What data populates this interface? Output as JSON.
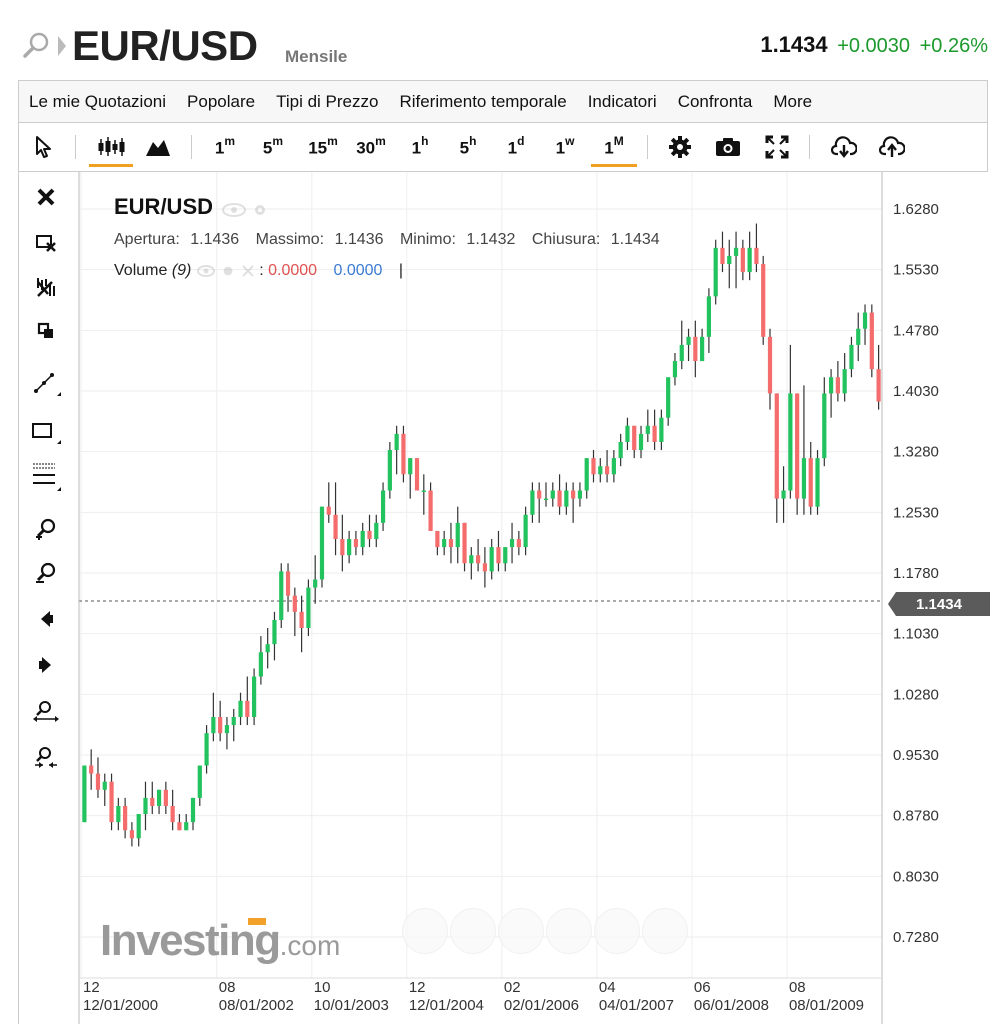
{
  "header": {
    "symbol": "EUR/USD",
    "period": "Mensile",
    "last": "1.1434",
    "change": "+0.0030",
    "change_pct": "+0.26%"
  },
  "menu": [
    "Le mie Quotazioni",
    "Popolare",
    "Tipi di Prezzo",
    "Riferimento temporale",
    "Indicatori",
    "Confronta",
    "More"
  ],
  "toolbar": {
    "intervals": [
      {
        "base": "1",
        "sup": "m"
      },
      {
        "base": "5",
        "sup": "m"
      },
      {
        "base": "15",
        "sup": "m"
      },
      {
        "base": "30",
        "sup": "m"
      },
      {
        "base": "1",
        "sup": "h"
      },
      {
        "base": "5",
        "sup": "h"
      },
      {
        "base": "1",
        "sup": "d"
      },
      {
        "base": "1",
        "sup": "w"
      },
      {
        "base": "1",
        "sup": "M"
      }
    ],
    "active_interval": "1M",
    "icons": [
      "cursor-icon",
      "candlestick-icon",
      "area-chart-icon",
      "settings-gear-icon",
      "camera-icon",
      "fullscreen-icon",
      "download-icon",
      "upload-icon"
    ]
  },
  "left_tools": [
    "close-icon",
    "delete-drawing-icon",
    "indicators-icon",
    "copy-icon",
    "trend-line-icon",
    "rectangle-icon",
    "fibonacci-icon",
    "zoom-in-icon",
    "zoom-out-icon",
    "scroll-left-icon",
    "scroll-right-icon",
    "zoom-in-extent-icon",
    "zoom-out-extent-icon"
  ],
  "legend": {
    "symbol": "EUR/USD",
    "open_label": "Apertura:",
    "open": "1.1436",
    "high_label": "Massimo:",
    "high": "1.1436",
    "low_label": "Minimo:",
    "low": "1.1432",
    "close_label": "Chiusura:",
    "close": "1.1434",
    "volume_label": "Volume",
    "volume_param": "(9)",
    "volume_sep": ":",
    "volume_value1": "0.0000",
    "volume_value2": "0.0000",
    "cursor": "|"
  },
  "watermark": {
    "brand": "Investing",
    "suffix": ".com"
  },
  "colors": {
    "up": "#22c35e",
    "down": "#f56c6c",
    "accent": "#f0a020",
    "badge": "#5b5b5b"
  },
  "chart_data": {
    "type": "candlestick",
    "current_price": 1.1434,
    "current_price_label": "1.1434",
    "ylim": [
      0.69,
      1.655
    ],
    "y_ticks": [
      "1.6280",
      "1.5530",
      "1.4780",
      "1.4030",
      "1.3280",
      "1.2530",
      "1.1780",
      "1.1030",
      "1.0280",
      "0.9530",
      "0.8780",
      "0.8030",
      "0.7280"
    ],
    "x_ticks": [
      {
        "month": "12",
        "date": "12/01/2000",
        "i": 0
      },
      {
        "month": "08",
        "date": "08/01/2002",
        "i": 20
      },
      {
        "month": "10",
        "date": "10/01/2003",
        "i": 34
      },
      {
        "month": "12",
        "date": "12/01/2004",
        "i": 48
      },
      {
        "month": "02",
        "date": "02/01/2006",
        "i": 62
      },
      {
        "month": "04",
        "date": "04/01/2007",
        "i": 76
      },
      {
        "month": "06",
        "date": "06/01/2008",
        "i": 90
      },
      {
        "month": "08",
        "date": "08/01/2009",
        "i": 104
      }
    ],
    "candles": [
      [
        0.87,
        0.94,
        0.87,
        0.94
      ],
      [
        0.94,
        0.96,
        0.91,
        0.93
      ],
      [
        0.93,
        0.95,
        0.9,
        0.91
      ],
      [
        0.91,
        0.93,
        0.89,
        0.92
      ],
      [
        0.92,
        0.93,
        0.86,
        0.87
      ],
      [
        0.87,
        0.9,
        0.86,
        0.89
      ],
      [
        0.89,
        0.9,
        0.85,
        0.86
      ],
      [
        0.86,
        0.87,
        0.84,
        0.85
      ],
      [
        0.85,
        0.88,
        0.84,
        0.88
      ],
      [
        0.88,
        0.92,
        0.86,
        0.9
      ],
      [
        0.9,
        0.92,
        0.88,
        0.89
      ],
      [
        0.89,
        0.91,
        0.88,
        0.91
      ],
      [
        0.91,
        0.92,
        0.88,
        0.89
      ],
      [
        0.89,
        0.91,
        0.86,
        0.87
      ],
      [
        0.87,
        0.88,
        0.86,
        0.86
      ],
      [
        0.86,
        0.88,
        0.86,
        0.87
      ],
      [
        0.87,
        0.9,
        0.86,
        0.9
      ],
      [
        0.9,
        0.94,
        0.89,
        0.94
      ],
      [
        0.94,
        0.99,
        0.93,
        0.98
      ],
      [
        0.98,
        1.03,
        0.97,
        1.0
      ],
      [
        1.0,
        1.02,
        0.97,
        0.98
      ],
      [
        0.98,
        1.0,
        0.96,
        0.99
      ],
      [
        0.99,
        1.01,
        0.97,
        1.0
      ],
      [
        1.0,
        1.03,
        0.99,
        1.02
      ],
      [
        1.02,
        1.05,
        0.99,
        1.0
      ],
      [
        1.0,
        1.06,
        0.99,
        1.05
      ],
      [
        1.05,
        1.1,
        1.04,
        1.08
      ],
      [
        1.08,
        1.11,
        1.06,
        1.09
      ],
      [
        1.09,
        1.13,
        1.07,
        1.12
      ],
      [
        1.12,
        1.19,
        1.11,
        1.18
      ],
      [
        1.18,
        1.19,
        1.13,
        1.15
      ],
      [
        1.15,
        1.16,
        1.1,
        1.13
      ],
      [
        1.13,
        1.15,
        1.08,
        1.11
      ],
      [
        1.11,
        1.17,
        1.1,
        1.16
      ],
      [
        1.16,
        1.2,
        1.14,
        1.17
      ],
      [
        1.17,
        1.26,
        1.16,
        1.26
      ],
      [
        1.26,
        1.29,
        1.24,
        1.25
      ],
      [
        1.25,
        1.29,
        1.2,
        1.22
      ],
      [
        1.22,
        1.25,
        1.18,
        1.2
      ],
      [
        1.2,
        1.23,
        1.19,
        1.22
      ],
      [
        1.22,
        1.23,
        1.2,
        1.21
      ],
      [
        1.21,
        1.24,
        1.2,
        1.23
      ],
      [
        1.23,
        1.25,
        1.21,
        1.22
      ],
      [
        1.22,
        1.25,
        1.21,
        1.24
      ],
      [
        1.24,
        1.29,
        1.23,
        1.28
      ],
      [
        1.28,
        1.34,
        1.27,
        1.33
      ],
      [
        1.33,
        1.36,
        1.3,
        1.35
      ],
      [
        1.35,
        1.36,
        1.29,
        1.3
      ],
      [
        1.3,
        1.32,
        1.27,
        1.32
      ],
      [
        1.32,
        1.32,
        1.28,
        1.28
      ],
      [
        1.28,
        1.3,
        1.25,
        1.28
      ],
      [
        1.28,
        1.29,
        1.23,
        1.23
      ],
      [
        1.23,
        1.23,
        1.2,
        1.21
      ],
      [
        1.21,
        1.23,
        1.2,
        1.22
      ],
      [
        1.22,
        1.24,
        1.19,
        1.21
      ],
      [
        1.21,
        1.26,
        1.19,
        1.24
      ],
      [
        1.24,
        1.24,
        1.18,
        1.19
      ],
      [
        1.19,
        1.21,
        1.17,
        1.2
      ],
      [
        1.2,
        1.22,
        1.18,
        1.19
      ],
      [
        1.19,
        1.21,
        1.16,
        1.18
      ],
      [
        1.18,
        1.22,
        1.17,
        1.21
      ],
      [
        1.21,
        1.23,
        1.18,
        1.19
      ],
      [
        1.19,
        1.21,
        1.18,
        1.21
      ],
      [
        1.21,
        1.24,
        1.19,
        1.22
      ],
      [
        1.22,
        1.23,
        1.2,
        1.21
      ],
      [
        1.21,
        1.26,
        1.2,
        1.25
      ],
      [
        1.25,
        1.29,
        1.24,
        1.28
      ],
      [
        1.28,
        1.29,
        1.24,
        1.27
      ],
      [
        1.27,
        1.29,
        1.26,
        1.27
      ],
      [
        1.27,
        1.29,
        1.26,
        1.28
      ],
      [
        1.28,
        1.3,
        1.25,
        1.26
      ],
      [
        1.26,
        1.29,
        1.25,
        1.28
      ],
      [
        1.28,
        1.29,
        1.24,
        1.27
      ],
      [
        1.27,
        1.29,
        1.26,
        1.28
      ],
      [
        1.28,
        1.32,
        1.27,
        1.32
      ],
      [
        1.32,
        1.33,
        1.29,
        1.3
      ],
      [
        1.3,
        1.32,
        1.29,
        1.31
      ],
      [
        1.31,
        1.33,
        1.29,
        1.3
      ],
      [
        1.3,
        1.33,
        1.29,
        1.32
      ],
      [
        1.32,
        1.35,
        1.31,
        1.34
      ],
      [
        1.34,
        1.37,
        1.33,
        1.36
      ],
      [
        1.36,
        1.36,
        1.32,
        1.33
      ],
      [
        1.33,
        1.36,
        1.32,
        1.35
      ],
      [
        1.35,
        1.38,
        1.34,
        1.36
      ],
      [
        1.36,
        1.38,
        1.33,
        1.34
      ],
      [
        1.34,
        1.38,
        1.33,
        1.37
      ],
      [
        1.37,
        1.42,
        1.36,
        1.42
      ],
      [
        1.42,
        1.45,
        1.41,
        1.44
      ],
      [
        1.44,
        1.49,
        1.43,
        1.46
      ],
      [
        1.46,
        1.48,
        1.44,
        1.47
      ],
      [
        1.47,
        1.49,
        1.42,
        1.44
      ],
      [
        1.44,
        1.48,
        1.44,
        1.47
      ],
      [
        1.47,
        1.53,
        1.45,
        1.52
      ],
      [
        1.52,
        1.59,
        1.51,
        1.58
      ],
      [
        1.58,
        1.6,
        1.55,
        1.56
      ],
      [
        1.56,
        1.59,
        1.53,
        1.57
      ],
      [
        1.57,
        1.6,
        1.53,
        1.58
      ],
      [
        1.58,
        1.59,
        1.54,
        1.55
      ],
      [
        1.55,
        1.6,
        1.54,
        1.58
      ],
      [
        1.58,
        1.61,
        1.55,
        1.56
      ],
      [
        1.56,
        1.57,
        1.46,
        1.47
      ],
      [
        1.47,
        1.48,
        1.38,
        1.4
      ],
      [
        1.4,
        1.4,
        1.24,
        1.27
      ],
      [
        1.27,
        1.31,
        1.24,
        1.28
      ],
      [
        1.28,
        1.46,
        1.27,
        1.4
      ],
      [
        1.4,
        1.4,
        1.25,
        1.27
      ],
      [
        1.27,
        1.41,
        1.25,
        1.32
      ],
      [
        1.32,
        1.34,
        1.25,
        1.26
      ],
      [
        1.26,
        1.33,
        1.25,
        1.32
      ],
      [
        1.32,
        1.42,
        1.31,
        1.4
      ],
      [
        1.4,
        1.43,
        1.37,
        1.42
      ],
      [
        1.42,
        1.44,
        1.39,
        1.4
      ],
      [
        1.4,
        1.45,
        1.39,
        1.43
      ],
      [
        1.43,
        1.47,
        1.42,
        1.46
      ],
      [
        1.46,
        1.5,
        1.44,
        1.48
      ],
      [
        1.48,
        1.51,
        1.46,
        1.5
      ],
      [
        1.5,
        1.51,
        1.42,
        1.43
      ],
      [
        1.43,
        1.46,
        1.38,
        1.39
      ]
    ]
  }
}
